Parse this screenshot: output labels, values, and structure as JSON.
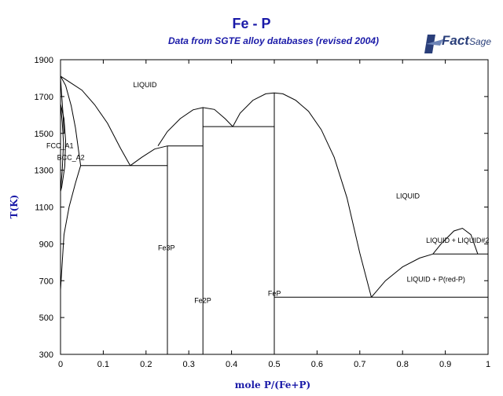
{
  "header": {
    "title": "Fe - P",
    "subtitle": "Data from SGTE alloy databases (revised 2004)",
    "logo_text": "Fact",
    "logo_suffix": "Sage"
  },
  "colors": {
    "title": "#1a1aa8",
    "axis_label": "#1a1aa8",
    "line": "#000000",
    "logo": "#2a3f7a"
  },
  "chart_data": {
    "type": "line",
    "title": "Fe - P",
    "subtitle": "Data from SGTE alloy databases (revised 2004)",
    "xlabel": "mole P/(Fe+P)",
    "ylabel": "T(K)",
    "xlim": [
      0,
      1
    ],
    "ylim": [
      300,
      1900
    ],
    "x_ticks": [
      0,
      0.1,
      0.2,
      0.3,
      0.4,
      0.5,
      0.6,
      0.7,
      0.8,
      0.9,
      1
    ],
    "y_ticks": [
      300,
      500,
      700,
      900,
      1100,
      1300,
      1500,
      1700,
      1900
    ],
    "grid": false,
    "region_labels": [
      {
        "text": "LIQUID",
        "x": 0.17,
        "y": 1750
      },
      {
        "text": "FCC_A1",
        "x": -0.033,
        "y": 1420
      },
      {
        "text": "BCC_A2",
        "x": -0.008,
        "y": 1355
      },
      {
        "text": "LIQUID",
        "x": 0.785,
        "y": 1148
      },
      {
        "text": "LIQUID + LIQUID#2",
        "x": 0.855,
        "y": 905
      },
      {
        "text": "Fe3P",
        "x": 0.228,
        "y": 865
      },
      {
        "text": "Fe2P",
        "x": 0.313,
        "y": 580
      },
      {
        "text": "FeP",
        "x": 0.485,
        "y": 618
      },
      {
        "text": "LIQUID + P(red-P)",
        "x": 0.81,
        "y": 695
      }
    ],
    "series": [
      {
        "points": [
          [
            0,
            1811
          ],
          [
            0.02,
            1780
          ],
          [
            0.05,
            1735
          ],
          [
            0.08,
            1655
          ],
          [
            0.11,
            1555
          ],
          [
            0.14,
            1420
          ],
          [
            0.163,
            1325
          ]
        ]
      },
      {
        "points": [
          [
            0.163,
            1325
          ],
          [
            0.19,
            1370
          ],
          [
            0.22,
            1415
          ],
          [
            0.25,
            1432
          ]
        ]
      },
      {
        "points": [
          [
            0.228,
            1432
          ],
          [
            0.25,
            1510
          ],
          [
            0.28,
            1580
          ],
          [
            0.31,
            1628
          ],
          [
            0.333,
            1640
          ],
          [
            0.36,
            1630
          ],
          [
            0.385,
            1580
          ],
          [
            0.403,
            1537
          ]
        ]
      },
      {
        "points": [
          [
            0.403,
            1537
          ],
          [
            0.42,
            1610
          ],
          [
            0.45,
            1680
          ],
          [
            0.48,
            1715
          ],
          [
            0.5,
            1720
          ],
          [
            0.52,
            1715
          ],
          [
            0.55,
            1680
          ],
          [
            0.58,
            1620
          ],
          [
            0.61,
            1520
          ],
          [
            0.64,
            1370
          ],
          [
            0.67,
            1150
          ],
          [
            0.7,
            850
          ],
          [
            0.727,
            610
          ]
        ]
      },
      {
        "points": [
          [
            0.727,
            610
          ],
          [
            0.76,
            700
          ],
          [
            0.8,
            775
          ],
          [
            0.84,
            823
          ],
          [
            0.871,
            845
          ]
        ]
      },
      {
        "points": [
          [
            0.871,
            845
          ],
          [
            0.89,
            900
          ],
          [
            0.92,
            970
          ],
          [
            0.94,
            985
          ],
          [
            0.96,
            950
          ],
          [
            0.976,
            845
          ]
        ]
      },
      {
        "points": [
          [
            0.871,
            845
          ],
          [
            1.0,
            845
          ]
        ]
      },
      {
        "points": [
          [
            0.5,
            610
          ],
          [
            1.0,
            610
          ]
        ]
      },
      {
        "points": [
          [
            0.047,
            1325
          ],
          [
            0.25,
            1325
          ]
        ]
      },
      {
        "points": [
          [
            0.25,
            300
          ],
          [
            0.25,
            1432
          ]
        ]
      },
      {
        "points": [
          [
            0.25,
            1432
          ],
          [
            0.333,
            1432
          ]
        ]
      },
      {
        "points": [
          [
            0.333,
            300
          ],
          [
            0.333,
            1640
          ]
        ]
      },
      {
        "points": [
          [
            0.333,
            1537
          ],
          [
            0.5,
            1537
          ]
        ]
      },
      {
        "points": [
          [
            0.5,
            300
          ],
          [
            0.5,
            1720
          ]
        ]
      },
      {
        "points": [
          [
            0,
            1811
          ],
          [
            0.012,
            1760
          ],
          [
            0.025,
            1650
          ],
          [
            0.035,
            1530
          ],
          [
            0.047,
            1325
          ]
        ]
      },
      {
        "points": [
          [
            0.047,
            1325
          ],
          [
            0.035,
            1230
          ],
          [
            0.02,
            1100
          ],
          [
            0.008,
            950
          ],
          [
            0,
            650
          ]
        ]
      },
      {
        "points": [
          [
            0,
            1800
          ],
          [
            0.003,
            1700
          ],
          [
            0.006,
            1600
          ],
          [
            0.008,
            1500
          ]
        ]
      },
      {
        "points": [
          [
            0,
            1655
          ],
          [
            0.004,
            1560
          ],
          [
            0.007,
            1450
          ],
          [
            0.004,
            1300
          ],
          [
            0,
            1185
          ]
        ]
      },
      {
        "points": [
          [
            0,
            1660
          ],
          [
            0.008,
            1580
          ],
          [
            0.012,
            1460
          ],
          [
            0.01,
            1320
          ],
          [
            0.003,
            1210
          ],
          [
            0,
            1185
          ]
        ]
      }
    ]
  }
}
